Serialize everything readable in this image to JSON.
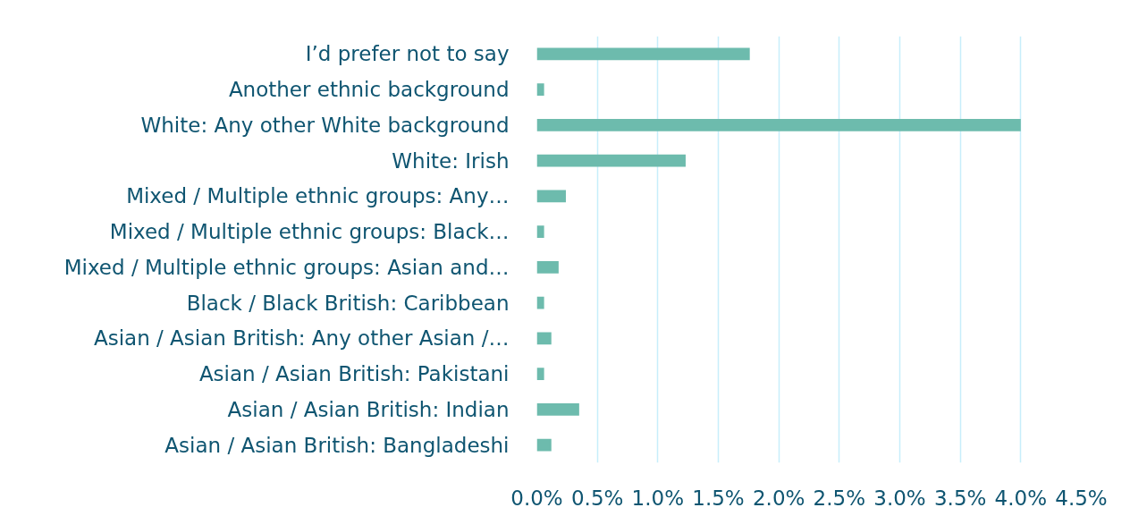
{
  "chart_data": {
    "type": "bar",
    "orientation": "horizontal",
    "categories": [
      "I’d prefer not to say",
      "Another ethnic background",
      "White: Any other White background",
      "White: Irish",
      "Mixed / Multiple ethnic groups: Any…",
      "Mixed / Multiple ethnic groups: Black…",
      "Mixed / Multiple ethnic groups: Asian and…",
      "Black / Black British: Caribbean",
      "Asian / Asian British: Any other Asian /…",
      "Asian / Asian British: Pakistani",
      "Asian / Asian British: Indian",
      "Asian / Asian British: Bangladeshi"
    ],
    "values": [
      1.76,
      0.06,
      4.0,
      1.23,
      0.24,
      0.06,
      0.18,
      0.06,
      0.12,
      0.06,
      0.35,
      0.12
    ],
    "color": "#6dbbad",
    "xlim": [
      0,
      4.5
    ],
    "xticks": [
      {
        "value": 0,
        "label": "0.0%"
      },
      {
        "value": 0.5,
        "label": "0.5%"
      },
      {
        "value": 1,
        "label": "1.0%"
      },
      {
        "value": 1.5,
        "label": "1.5%"
      },
      {
        "value": 2,
        "label": "2.0%"
      },
      {
        "value": 2.5,
        "label": "2.5%"
      },
      {
        "value": 3,
        "label": "3.0%"
      },
      {
        "value": 3.5,
        "label": "3.5%"
      },
      {
        "value": 4,
        "label": "4.0%"
      },
      {
        "value": 4.5,
        "label": "4.5%"
      }
    ],
    "grid": "x"
  }
}
